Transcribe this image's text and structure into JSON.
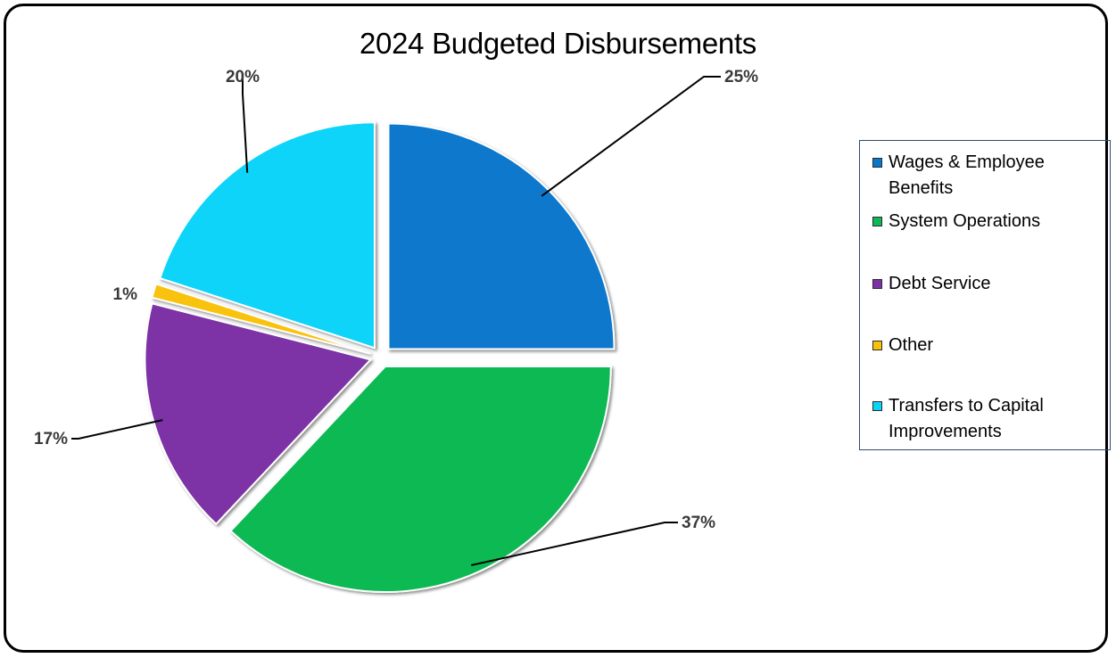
{
  "chart_data": {
    "type": "pie",
    "title": "2024 Budgeted Disbursements",
    "slices": [
      {
        "label": "Wages & Employee Benefits",
        "value": 25,
        "display": "25%",
        "color": "#0878cc"
      },
      {
        "label": "System Operations",
        "value": 37,
        "display": "37%",
        "color": "#0cb952"
      },
      {
        "label": "Debt Service",
        "value": 17,
        "display": "17%",
        "color": "#7d33a5"
      },
      {
        "label": "Other",
        "value": 1,
        "display": "1%",
        "color": "#f8c20c"
      },
      {
        "label": "Transfers to Capital Improvements",
        "value": 20,
        "display": "20%",
        "color": "#08d4f8"
      }
    ],
    "legend": {
      "position": "right",
      "items": [
        {
          "line1": "Wages & Employee",
          "line2": "Benefits"
        },
        {
          "line1": "System Operations",
          "line2": ""
        },
        {
          "line1": "Debt Service",
          "line2": ""
        },
        {
          "line1": "Other",
          "line2": ""
        },
        {
          "line1": "Transfers to Capital",
          "line2": "Improvements"
        }
      ]
    },
    "exploded": true
  }
}
